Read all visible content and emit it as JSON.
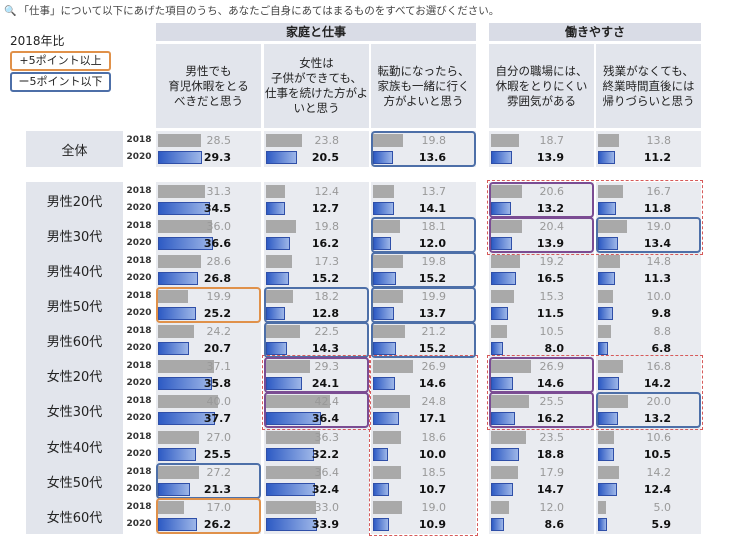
{
  "question": "「仕事」について以下にあげた項目のうち、あなたご自身にあてはまるものをすべてお選びください。",
  "legend": {
    "title": "2018年比",
    "up": "+5ポイント以上",
    "down": "ー5ポイント以下"
  },
  "chart_data": {
    "type": "bar",
    "groups": [
      {
        "label": "家庭と仕事",
        "columns": [
          0,
          1,
          2
        ]
      },
      {
        "label": "働きやすさ",
        "columns": [
          3,
          4
        ]
      }
    ],
    "columns": [
      "男性でも\n育児休暇をとる\nべきだと思う",
      "女性は\n子供ができても、\n仕事を続けた方がよ\nいと思う",
      "転勤になったら、\n家族も一緒に行く\n方がよいと思う",
      "自分の職場には、\n休暇をとりにくい\n雰囲気がある",
      "残業がなくても、\n終業時間直後には\n帰りづらいと思う"
    ],
    "years": [
      "2018",
      "2020"
    ],
    "rows": [
      {
        "label": "全体",
        "v2018": [
          28.5,
          23.8,
          19.8,
          18.7,
          13.8
        ],
        "v2020": [
          29.3,
          20.5,
          13.6,
          13.9,
          11.2
        ]
      },
      {
        "label": "男性20代",
        "v2018": [
          31.3,
          12.4,
          13.7,
          20.6,
          16.7
        ],
        "v2020": [
          34.5,
          12.7,
          14.1,
          13.2,
          11.8
        ]
      },
      {
        "label": "男性30代",
        "v2018": [
          36.0,
          19.8,
          18.1,
          20.4,
          19.0
        ],
        "v2020": [
          36.6,
          16.2,
          12.0,
          13.9,
          13.4
        ]
      },
      {
        "label": "男性40代",
        "v2018": [
          28.6,
          17.3,
          19.8,
          19.2,
          14.8
        ],
        "v2020": [
          26.8,
          15.2,
          15.2,
          16.5,
          11.3
        ]
      },
      {
        "label": "男性50代",
        "v2018": [
          19.9,
          18.2,
          19.9,
          15.3,
          10.0
        ],
        "v2020": [
          25.2,
          12.8,
          13.7,
          11.5,
          9.8
        ]
      },
      {
        "label": "男性60代",
        "v2018": [
          24.2,
          22.5,
          21.2,
          10.5,
          8.8
        ],
        "v2020": [
          20.7,
          14.3,
          15.2,
          8.0,
          6.8
        ]
      },
      {
        "label": "女性20代",
        "v2018": [
          37.1,
          29.3,
          26.9,
          26.9,
          16.8
        ],
        "v2020": [
          35.8,
          24.1,
          14.6,
          14.6,
          14.2
        ]
      },
      {
        "label": "女性30代",
        "v2018": [
          40.0,
          42.4,
          24.8,
          25.5,
          20.0
        ],
        "v2020": [
          37.7,
          36.4,
          17.1,
          16.2,
          13.2
        ]
      },
      {
        "label": "女性40代",
        "v2018": [
          27.0,
          36.3,
          18.6,
          23.5,
          10.6
        ],
        "v2020": [
          25.5,
          32.2,
          10.0,
          18.8,
          10.5
        ]
      },
      {
        "label": "女性50代",
        "v2018": [
          27.2,
          36.4,
          18.5,
          17.9,
          14.2
        ],
        "v2020": [
          21.3,
          32.4,
          10.7,
          14.7,
          12.4
        ]
      },
      {
        "label": "女性60代",
        "v2018": [
          17.0,
          33.0,
          19.0,
          12.0,
          5.0
        ],
        "v2020": [
          26.2,
          33.9,
          10.9,
          8.6,
          5.9
        ]
      }
    ],
    "highlights": [
      {
        "row": 0,
        "col": 2,
        "kind": "down"
      },
      {
        "row": 1,
        "col": 3,
        "kind": "purple"
      },
      {
        "row": 2,
        "col": 2,
        "kind": "down"
      },
      {
        "row": 2,
        "col": 3,
        "kind": "purple"
      },
      {
        "row": 2,
        "col": 4,
        "kind": "down"
      },
      {
        "row": 3,
        "col": 2,
        "kind": "down"
      },
      {
        "row": 4,
        "col": 0,
        "kind": "up"
      },
      {
        "row": 4,
        "col": 1,
        "kind": "down"
      },
      {
        "row": 4,
        "col": 2,
        "kind": "down"
      },
      {
        "row": 5,
        "col": 1,
        "kind": "down"
      },
      {
        "row": 5,
        "col": 2,
        "kind": "down"
      },
      {
        "row": 6,
        "col": 1,
        "kind": "purple"
      },
      {
        "row": 6,
        "col": 3,
        "kind": "purple"
      },
      {
        "row": 7,
        "col": 1,
        "kind": "purple"
      },
      {
        "row": 7,
        "col": 3,
        "kind": "purple"
      },
      {
        "row": 7,
        "col": 4,
        "kind": "down"
      },
      {
        "row": 9,
        "col": 0,
        "kind": "down"
      },
      {
        "row": 10,
        "col": 0,
        "kind": "up"
      }
    ],
    "dashed_regions": [
      {
        "rows": [
          1,
          2
        ],
        "cols": [
          3,
          4
        ]
      },
      {
        "rows": [
          6,
          7
        ],
        "cols": [
          1,
          1
        ]
      },
      {
        "rows": [
          6,
          10
        ],
        "cols": [
          2,
          2
        ]
      },
      {
        "rows": [
          6,
          7
        ],
        "cols": [
          3,
          4
        ]
      }
    ],
    "colors": {
      "bar2018": "#A9A9A9",
      "bar2020": "#2E5BC4",
      "up": "#E0914A",
      "down": "#4D6FA8",
      "purple": "#7B4C93",
      "dashed": "#D65A5A"
    }
  }
}
